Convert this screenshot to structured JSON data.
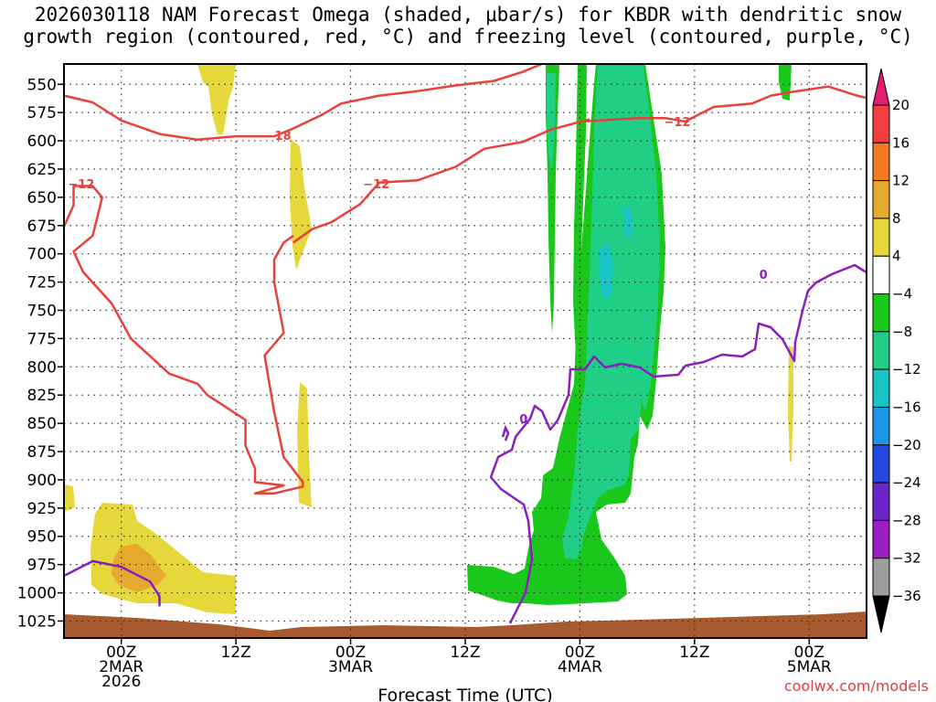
{
  "chart_data": {
    "type": "heatmap",
    "title_line1": "2026030118 NAM Forecast Omega (shaded, μbar/s) for KBDR with dendritic snow",
    "title_line2": "growth region (contoured, red, °C) and freezing level (contoured, purple, °C)",
    "xlabel": "Forecast Time (UTC)",
    "credit": "coolwx.com/models",
    "x_unit": "hours since 2026-03-01 18Z",
    "xlim": [
      0,
      84
    ],
    "x_ticks": [
      {
        "hour": 6,
        "lines": [
          "00Z",
          "2MAR",
          "2026"
        ]
      },
      {
        "hour": 18,
        "lines": [
          "12Z"
        ]
      },
      {
        "hour": 30,
        "lines": [
          "00Z",
          "3MAR"
        ]
      },
      {
        "hour": 42,
        "lines": [
          "12Z"
        ]
      },
      {
        "hour": 54,
        "lines": [
          "00Z",
          "4MAR"
        ]
      },
      {
        "hour": 66,
        "lines": [
          "12Z"
        ]
      },
      {
        "hour": 78,
        "lines": [
          "00Z",
          "5MAR"
        ]
      }
    ],
    "y_unit": "hPa",
    "ylim": [
      1040,
      532
    ],
    "y_ticks": [
      550,
      575,
      600,
      625,
      650,
      675,
      700,
      725,
      750,
      775,
      800,
      825,
      850,
      875,
      900,
      925,
      950,
      975,
      1000,
      1025
    ],
    "colorbar": {
      "levels": [
        "20",
        "16",
        "12",
        "8",
        "4",
        "−4",
        "−8",
        "−12",
        "−16",
        "−20",
        "−24",
        "−28",
        "−32",
        "−36"
      ],
      "colors": [
        "#e51a72",
        "#f03e3e",
        "#f27a1e",
        "#e6aa2e",
        "#e6d83a",
        "#ffffff",
        "#19c81b",
        "#1fcf86",
        "#19c4c4",
        "#1e96e6",
        "#2448e0",
        "#6a24c8",
        "#9a1ec0",
        "#9e9e9e",
        "#000000"
      ]
    },
    "shading_colors": {
      "yellow": "#e6d83a",
      "orange": "#e6aa2e",
      "green": "#19c81b",
      "teal": "#1fcf86",
      "cyan": "#19c4c4",
      "ground": "#a65a2e"
    },
    "contours": {
      "dgz_color": "#e8413a",
      "freezing_color": "#8a1ec0",
      "labels": [
        {
          "text": "−12",
          "hour": 1.8,
          "p": 638,
          "kind": "dgz"
        },
        {
          "text": "−18",
          "hour": 22.4,
          "p": 595,
          "kind": "dgz"
        },
        {
          "text": "−12",
          "hour": 32.7,
          "p": 638,
          "kind": "dgz"
        },
        {
          "text": "−12",
          "hour": 64.2,
          "p": 583,
          "kind": "dgz"
        },
        {
          "text": "0",
          "hour": 48.1,
          "p": 846,
          "kind": "fzl"
        },
        {
          "text": "0",
          "hour": 73.2,
          "p": 718,
          "kind": "fzl"
        }
      ],
      "dgz_upper_m18": [
        [
          0,
          560
        ],
        [
          3,
          566
        ],
        [
          6,
          582
        ],
        [
          10,
          594
        ],
        [
          14,
          599
        ],
        [
          18,
          596
        ],
        [
          22,
          596
        ],
        [
          24,
          589
        ],
        [
          27,
          577
        ],
        [
          29,
          567
        ],
        [
          33,
          560
        ],
        [
          37,
          556
        ],
        [
          41,
          551
        ],
        [
          45,
          547
        ],
        [
          48,
          539
        ],
        [
          50,
          532
        ]
      ],
      "dgz_upper_m12": [
        [
          54,
          583
        ],
        [
          60,
          580
        ],
        [
          63,
          580
        ],
        [
          65,
          583
        ],
        [
          68,
          570
        ],
        [
          72,
          567
        ],
        [
          74,
          560
        ],
        [
          76,
          557
        ],
        [
          80,
          552
        ],
        [
          83,
          560
        ],
        [
          84,
          562
        ]
      ],
      "dgz_upper_m12_mid": [
        [
          24,
          690
        ],
        [
          26,
          678
        ],
        [
          28,
          672
        ],
        [
          31,
          656
        ],
        [
          33,
          637
        ],
        [
          37,
          635
        ],
        [
          41,
          623
        ],
        [
          44,
          607
        ],
        [
          48,
          601
        ],
        [
          51,
          590
        ],
        [
          55,
          581
        ]
      ],
      "dgz_lower": [
        [
          0,
          676
        ],
        [
          1,
          657
        ],
        [
          1,
          640
        ],
        [
          3,
          640
        ],
        [
          4,
          650
        ],
        [
          3,
          684
        ],
        [
          1,
          698
        ],
        [
          2,
          716
        ],
        [
          5,
          744
        ],
        [
          7,
          775
        ],
        [
          11,
          806
        ],
        [
          14,
          815
        ],
        [
          15,
          825
        ],
        [
          19,
          847
        ],
        [
          19,
          870
        ],
        [
          20,
          890
        ],
        [
          20,
          902
        ],
        [
          23,
          905
        ],
        [
          20,
          912
        ],
        [
          22,
          912
        ],
        [
          25,
          906
        ],
        [
          25,
          902
        ],
        [
          23,
          880
        ],
        [
          22,
          840
        ],
        [
          21,
          790
        ],
        [
          23,
          770
        ],
        [
          22,
          725
        ],
        [
          22,
          705
        ],
        [
          23,
          690
        ],
        [
          24,
          684
        ]
      ],
      "freezing": [
        [
          0,
          985
        ],
        [
          3,
          972
        ],
        [
          6,
          977
        ],
        [
          9,
          990
        ],
        [
          10,
          1003
        ],
        [
          10,
          1012
        ]
      ]
    }
  }
}
